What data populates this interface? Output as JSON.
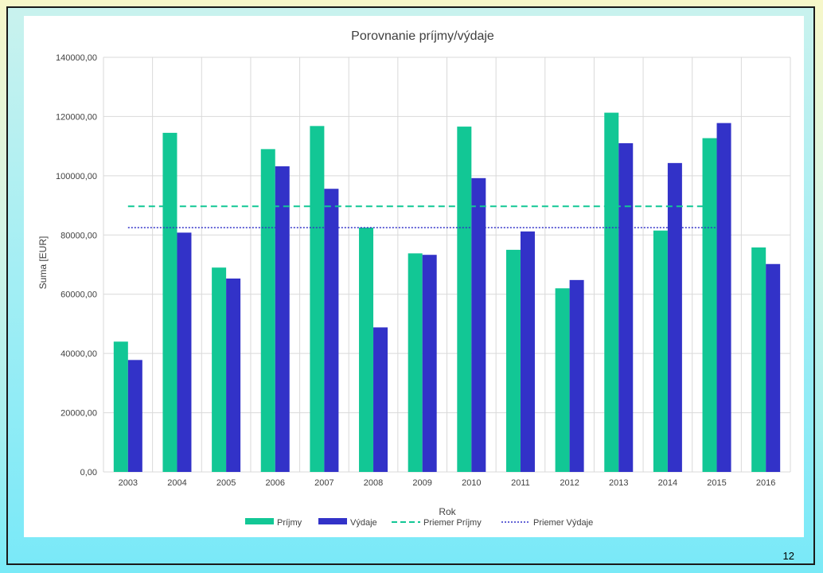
{
  "page": {
    "number": "12"
  },
  "colors": {
    "prijmy": "#12c795",
    "vydaje": "#3232c8",
    "grid": "#d9d9d9",
    "axis_text": "#404040"
  },
  "chart_data": {
    "type": "bar",
    "title": "Porovnanie príjmy/výdaje",
    "xlabel": "Rok",
    "ylabel": "Suma [EUR]",
    "ylim": [
      0,
      140000
    ],
    "yticks": [
      "0,00",
      "20000,00",
      "40000,00",
      "60000,00",
      "80000,00",
      "100000,00",
      "120000,00",
      "140000,00"
    ],
    "grid": true,
    "legend_position": "bottom",
    "categories": [
      "2003",
      "2004",
      "2005",
      "2006",
      "2007",
      "2008",
      "2009",
      "2010",
      "2011",
      "2012",
      "2013",
      "2014",
      "2015",
      "2016"
    ],
    "series": [
      {
        "name": "Príjmy",
        "values": [
          44000,
          114500,
          69000,
          109000,
          116800,
          82500,
          73800,
          116600,
          75000,
          62000,
          121300,
          81500,
          112700,
          75800
        ]
      },
      {
        "name": "Výdaje",
        "values": [
          37800,
          80800,
          65300,
          103200,
          95600,
          48800,
          73300,
          99200,
          81200,
          64800,
          111000,
          104300,
          117800,
          70200
        ]
      }
    ],
    "reference_lines": [
      {
        "name": "Priemer Príjmy",
        "value": 89700,
        "style": "dashed",
        "span": "2003-2015"
      },
      {
        "name": "Priemer Výdaje",
        "value": 82500,
        "style": "dotted",
        "span": "2003-2015"
      }
    ]
  }
}
